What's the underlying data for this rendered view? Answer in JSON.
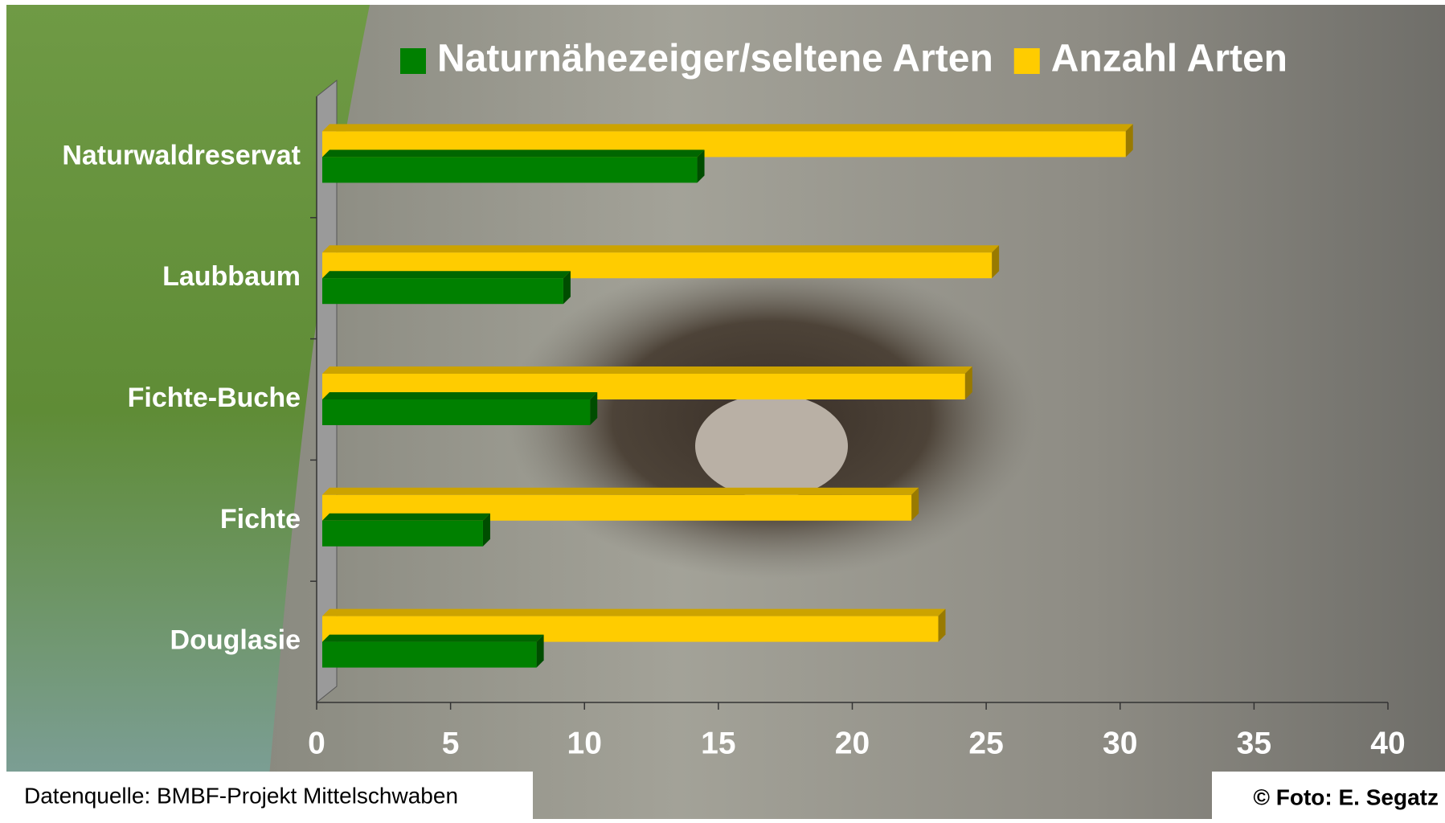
{
  "chart_data": {
    "type": "bar",
    "orientation": "horizontal",
    "categories": [
      "Naturwaldreservat",
      "Laubbaum",
      "Fichte-Buche",
      "Fichte",
      "Douglasie"
    ],
    "series": [
      {
        "name": "Naturnähezeiger/seltene Arten",
        "color": "#008000",
        "values": [
          14,
          9,
          10,
          6,
          8
        ]
      },
      {
        "name": "Anzahl Arten",
        "color": "#ffcc00",
        "values": [
          30,
          25,
          24,
          22,
          23
        ]
      }
    ],
    "xlim": [
      0,
      40
    ],
    "xticks": [
      0,
      5,
      10,
      15,
      20,
      25,
      30,
      35,
      40
    ]
  },
  "footer": {
    "source": "Datenquelle: BMBF-Projekt Mittelschwaben",
    "credit": "© Foto: E. Segatz"
  }
}
